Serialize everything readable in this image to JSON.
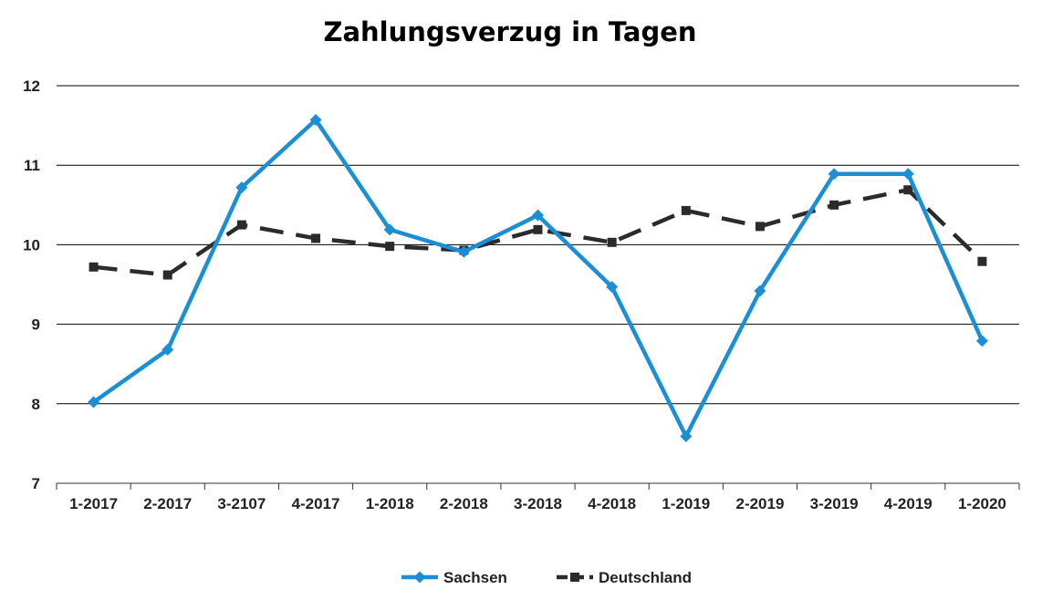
{
  "chart_data": {
    "type": "line",
    "title": "Zahlungsverzug in Tagen",
    "xlabel": "",
    "ylabel": "",
    "categories": [
      "1-2017",
      "2-2017",
      "3-2107",
      "4-2017",
      "1-2018",
      "2-2018",
      "3-2018",
      "4-2018",
      "1-2019",
      "2-2019",
      "3-2019",
      "4-2019",
      "1-2020"
    ],
    "ylim": [
      7,
      12
    ],
    "yticks": [
      7,
      8,
      9,
      10,
      11,
      12
    ],
    "grid": true,
    "legend_position": "bottom",
    "series": [
      {
        "name": "Sachsen",
        "color": "#1a8fd6",
        "marker": "diamond",
        "line_style": "solid",
        "values": [
          8.02,
          8.68,
          10.72,
          11.57,
          10.19,
          9.91,
          10.37,
          9.47,
          7.59,
          9.42,
          10.89,
          10.89,
          8.79
        ]
      },
      {
        "name": "Deutschland",
        "color": "#2b2b2b",
        "marker": "square",
        "line_style": "dashed",
        "values": [
          9.72,
          9.62,
          10.25,
          10.08,
          9.98,
          9.93,
          10.19,
          10.03,
          10.43,
          10.23,
          10.5,
          10.69,
          9.79
        ]
      }
    ]
  }
}
